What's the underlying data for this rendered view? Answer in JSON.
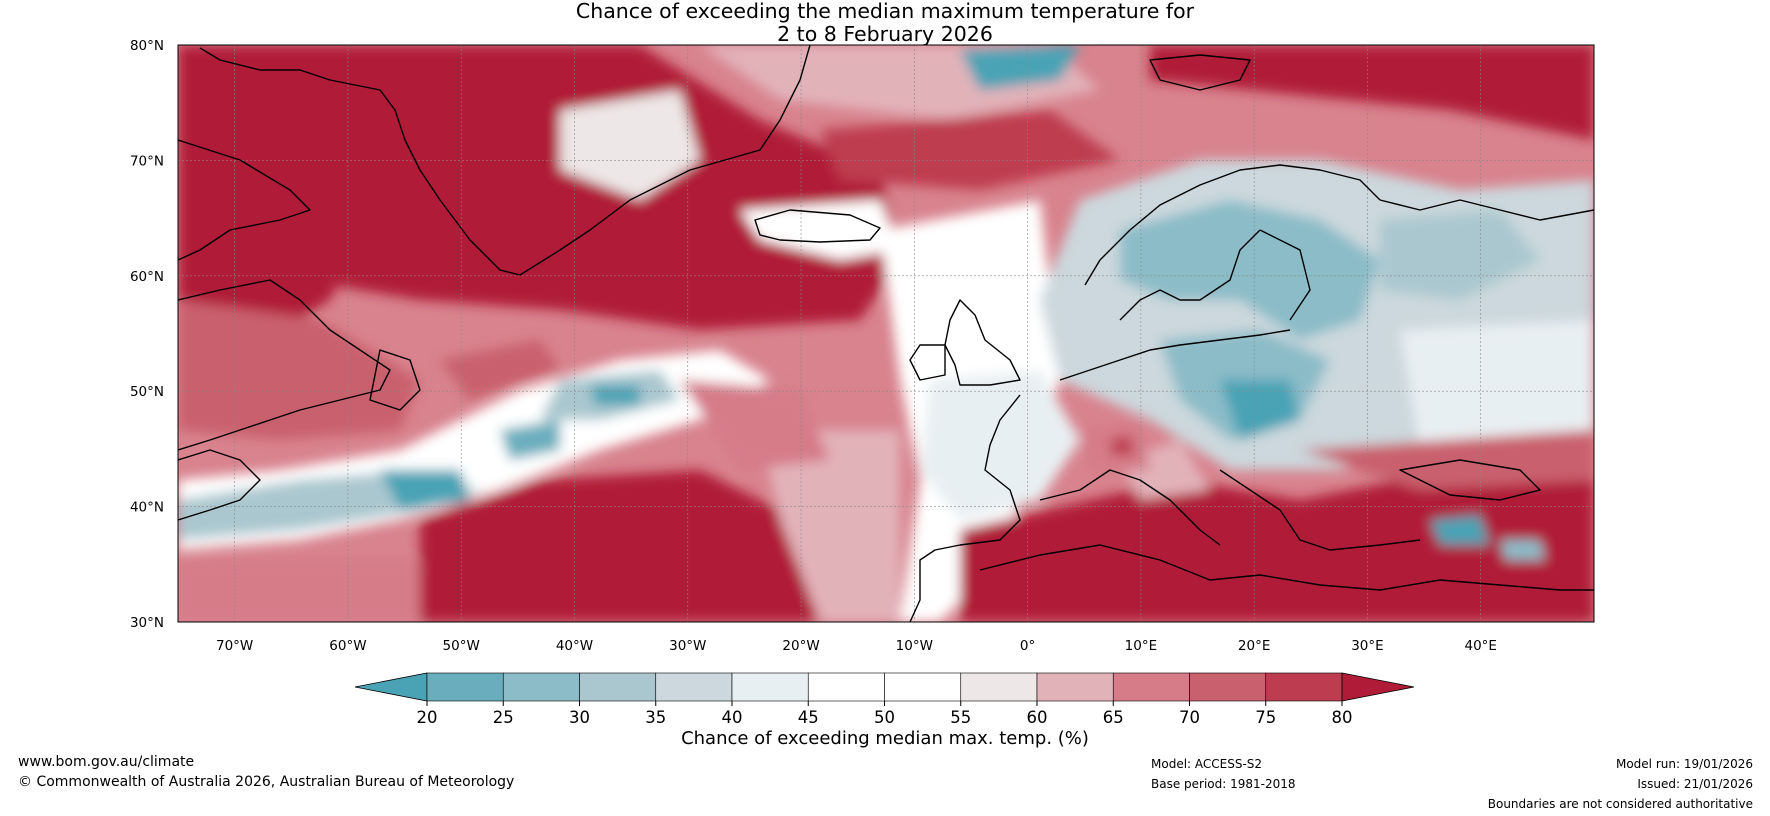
{
  "title": {
    "line1": "Chance of exceeding the median maximum temperature for",
    "line2": "2 to 8 February 2026"
  },
  "map": {
    "lat_labels": [
      "80°N",
      "70°N",
      "60°N",
      "50°N",
      "40°N",
      "30°N"
    ],
    "lon_labels": [
      "70°W",
      "60°W",
      "50°W",
      "40°W",
      "30°W",
      "20°W",
      "10°W",
      "0°",
      "10°E",
      "20°E",
      "30°E",
      "40°E"
    ],
    "lat_range": [
      30,
      80
    ],
    "lon_range": [
      -75,
      50
    ]
  },
  "colorbar": {
    "ticks": [
      "20",
      "25",
      "30",
      "35",
      "40",
      "45",
      "50",
      "55",
      "60",
      "65",
      "70",
      "75",
      "80"
    ],
    "colors": [
      "#4aa3b5",
      "#6aaebd",
      "#8bbcc8",
      "#aac7cf",
      "#ccd8dd",
      "#e8eff2",
      "#ffffff",
      "#ffffff",
      "#ede7e7",
      "#e2b2b9",
      "#d67c89",
      "#c9606d",
      "#be3c50",
      "#b01c38"
    ],
    "title": "Chance of exceeding median max. temp. (%)"
  },
  "footer": {
    "website": "www.bom.gov.au/climate",
    "copyright": "© Commonwealth of Australia 2026, Australian Bureau of Meteorology",
    "model": "Model: ACCESS-S2",
    "base_period": "Base period: 1981-2018",
    "model_run": "Model run: 19/01/2026",
    "issued": "Issued: 21/01/2026",
    "disclaimer": "Boundaries are not considered authoritative"
  }
}
